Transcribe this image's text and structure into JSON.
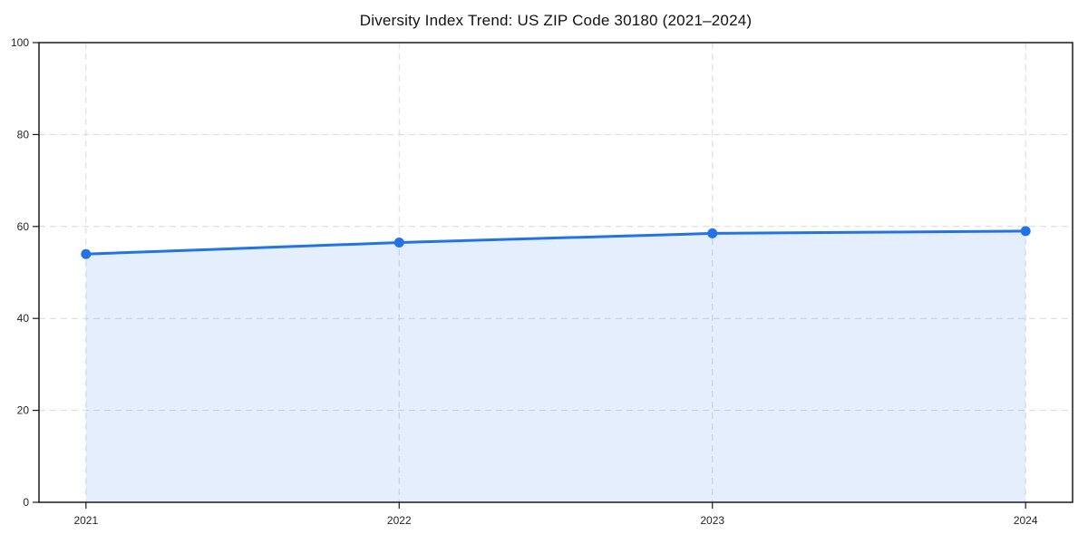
{
  "page": {
    "background": "#ffffff"
  },
  "chart_data": {
    "type": "area",
    "title": "Diversity Index Trend: US ZIP Code 30180 (2021–2024)",
    "x": [
      2021,
      2022,
      2023,
      2024
    ],
    "x_tick_labels": [
      "2021",
      "2022",
      "2023",
      "2024"
    ],
    "y_ticks": [
      0,
      20,
      40,
      60,
      80,
      100
    ],
    "y_tick_labels": [
      "0",
      "20",
      "40",
      "60",
      "80",
      "100"
    ],
    "series": [
      {
        "name": "Diversity Index",
        "values": [
          54,
          56.5,
          58.5,
          59
        ]
      }
    ],
    "xlim": [
      2020.85,
      2024.15
    ],
    "ylim": [
      0,
      100
    ],
    "xlabel": "",
    "ylabel": "",
    "grid": true,
    "grid_style": "dashed",
    "legend": "none",
    "colors": {
      "line": "#2273e6",
      "marker": "#2273e6",
      "fill": "rgba(34, 115, 230, 0.12)",
      "gridline": "#d9d9d9",
      "axis": "#1a1a1a",
      "tick_label": "#262626",
      "title": "#111111",
      "background": "#ffffff"
    }
  }
}
